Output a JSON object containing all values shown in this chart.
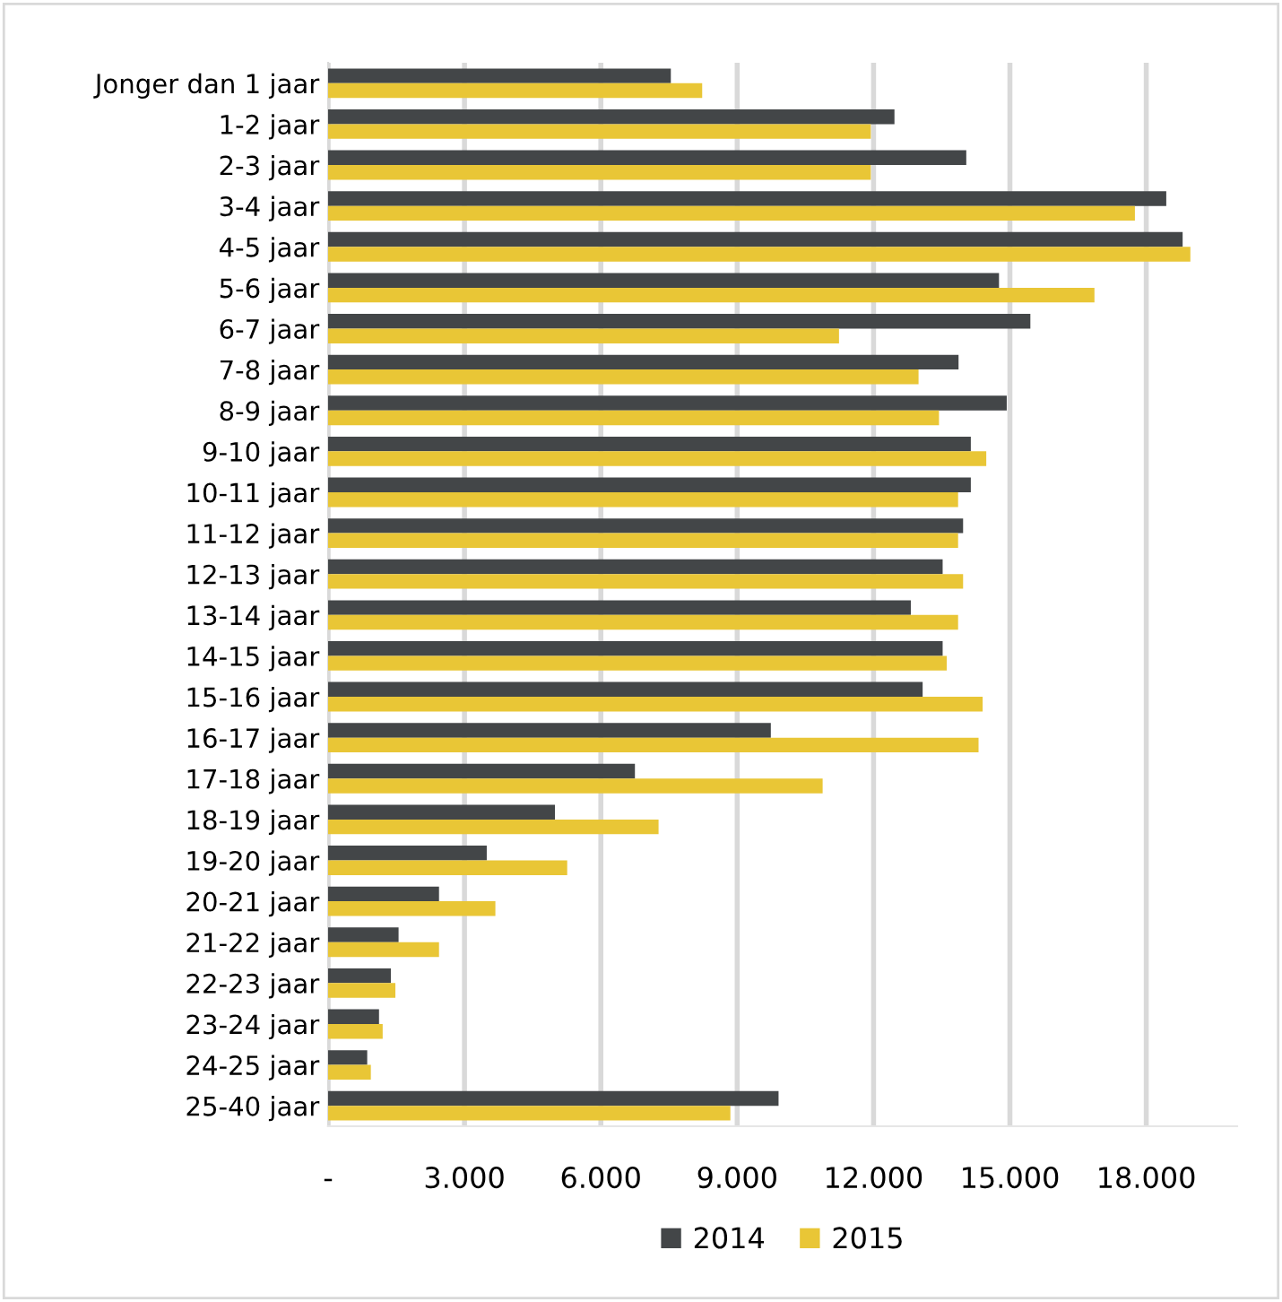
{
  "chart_data": {
    "type": "bar",
    "orientation": "horizontal",
    "categories": [
      "Jonger dan 1 jaar",
      "1-2 jaar",
      "2-3 jaar",
      "3-4 jaar",
      "4-5 jaar",
      "5-6 jaar",
      "6-7 jaar",
      "7-8 jaar",
      "8-9 jaar",
      "9-10 jaar",
      "10-11 jaar",
      "11-12 jaar",
      "12-13 jaar",
      "13-14 jaar",
      "14-15 jaar",
      "15-16 jaar",
      "16-17 jaar",
      "17-18 jaar",
      "18-19 jaar",
      "19-20 jaar",
      "20-21 jaar",
      "21-22 jaar",
      "22-23 jaar",
      "23-24 jaar",
      "24-25 jaar",
      "25-40 jaar"
    ],
    "series": [
      {
        "name": "2014",
        "color": "#434648",
        "values": [
          7540,
          12460,
          14040,
          18440,
          18800,
          14760,
          15450,
          13870,
          14930,
          14140,
          14140,
          13970,
          13520,
          12820,
          13520,
          13080,
          9740,
          6750,
          4990,
          3490,
          2440,
          1550,
          1380,
          1120,
          860,
          9910
        ]
      },
      {
        "name": "2015",
        "color": "#e9c636",
        "values": [
          8230,
          11940,
          11940,
          17750,
          18970,
          16860,
          11240,
          12990,
          13440,
          14480,
          13860,
          13860,
          13970,
          13860,
          13610,
          14400,
          14310,
          10880,
          7270,
          5260,
          3680,
          2440,
          1480,
          1200,
          940,
          8850
        ]
      }
    ],
    "xlim": [
      0,
      20000
    ],
    "xticks": [
      {
        "value": 0,
        "label": "-"
      },
      {
        "value": 3000,
        "label": "3.000"
      },
      {
        "value": 6000,
        "label": "6.000"
      },
      {
        "value": 9000,
        "label": "9.000"
      },
      {
        "value": 12000,
        "label": "12.000"
      },
      {
        "value": 15000,
        "label": "15.000"
      },
      {
        "value": 18000,
        "label": "18.000"
      }
    ],
    "grid": "x",
    "legend": "bottom"
  }
}
